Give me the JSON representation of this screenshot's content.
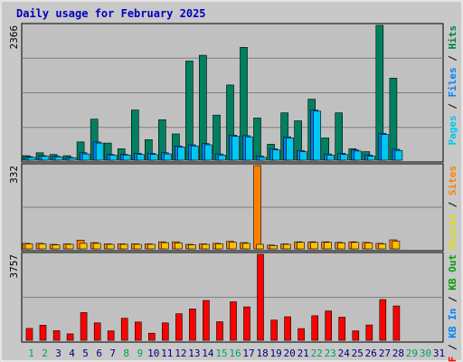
{
  "chart_data": [
    {
      "type": "bar",
      "title": "Daily usage for February 2025",
      "ylabel_top": "2366",
      "right_label": {
        "parts": [
          {
            "text": "Pages",
            "color": "#00c8f0"
          },
          {
            "text": " / ",
            "color": "#000000"
          },
          {
            "text": "Files",
            "color": "#0080ff"
          },
          {
            "text": " / ",
            "color": "#000000"
          },
          {
            "text": "Hits",
            "color": "#008040"
          }
        ]
      },
      "ylim": [
        0,
        2366
      ],
      "categories": [
        "1",
        "2",
        "3",
        "4",
        "5",
        "6",
        "7",
        "8",
        "9",
        "10",
        "11",
        "12",
        "13",
        "14",
        "15",
        "16",
        "17",
        "18",
        "19",
        "20",
        "21",
        "22",
        "23",
        "24",
        "25",
        "26",
        "27",
        "28",
        "29",
        "30",
        "31"
      ],
      "series": [
        {
          "name": "Hits",
          "color": "#008060",
          "values": [
            80,
            130,
            100,
            80,
            320,
            720,
            300,
            200,
            880,
            360,
            710,
            460,
            1740,
            1840,
            790,
            1320,
            1980,
            740,
            280,
            830,
            690,
            1070,
            390,
            830,
            200,
            150,
            2366,
            1440,
            0,
            0,
            0
          ]
        },
        {
          "name": "Files",
          "color": "#0080ff",
          "values": [
            60,
            80,
            70,
            50,
            130,
            320,
            100,
            100,
            120,
            120,
            130,
            250,
            270,
            290,
            110,
            440,
            430,
            70,
            200,
            410,
            170,
            880,
            110,
            120,
            180,
            90,
            470,
            190,
            0,
            0,
            0
          ]
        },
        {
          "name": "Pages",
          "color": "#00c8f0",
          "values": [
            50,
            70,
            60,
            40,
            110,
            300,
            90,
            90,
            100,
            100,
            110,
            230,
            250,
            270,
            90,
            420,
            410,
            50,
            180,
            390,
            150,
            860,
            90,
            100,
            160,
            70,
            450,
            170,
            0,
            0,
            0
          ]
        }
      ]
    },
    {
      "type": "bar",
      "ylabel_top": "332",
      "right_label": {
        "parts": [
          {
            "text": "Visits",
            "color": "#e0e000"
          },
          {
            "text": " / ",
            "color": "#000000"
          },
          {
            "text": "Sites",
            "color": "#ff8000"
          }
        ]
      },
      "ylim": [
        0,
        332
      ],
      "categories": [
        "1",
        "2",
        "3",
        "4",
        "5",
        "6",
        "7",
        "8",
        "9",
        "10",
        "11",
        "12",
        "13",
        "14",
        "15",
        "16",
        "17",
        "18",
        "19",
        "20",
        "21",
        "22",
        "23",
        "24",
        "25",
        "26",
        "27",
        "28",
        "29",
        "30",
        "31"
      ],
      "series": [
        {
          "name": "Sites",
          "color": "#ff8000",
          "values": [
            22,
            22,
            18,
            20,
            35,
            25,
            20,
            20,
            20,
            20,
            28,
            28,
            18,
            20,
            22,
            30,
            25,
            332,
            15,
            20,
            28,
            28,
            28,
            26,
            28,
            26,
            22,
            36,
            0,
            0,
            0
          ]
        },
        {
          "name": "Visits",
          "color": "#ffc000",
          "values": [
            20,
            20,
            16,
            18,
            22,
            22,
            18,
            18,
            18,
            18,
            25,
            24,
            16,
            18,
            20,
            26,
            22,
            18,
            13,
            18,
            26,
            26,
            26,
            24,
            26,
            24,
            20,
            30,
            0,
            0,
            0
          ]
        }
      ]
    },
    {
      "type": "bar",
      "ylabel_top": "3757",
      "right_label": {
        "parts": [
          {
            "text": "KB F",
            "color": "#ff0000"
          },
          {
            "text": " / ",
            "color": "#000000"
          },
          {
            "text": "KB In",
            "color": "#0080ff"
          },
          {
            "text": " / ",
            "color": "#000000"
          },
          {
            "text": "KB Out",
            "color": "#00a000"
          }
        ]
      },
      "ylim": [
        0,
        3757
      ],
      "categories": [
        "1",
        "2",
        "3",
        "4",
        "5",
        "6",
        "7",
        "8",
        "9",
        "10",
        "11",
        "12",
        "13",
        "14",
        "15",
        "16",
        "17",
        "18",
        "19",
        "20",
        "21",
        "22",
        "23",
        "24",
        "25",
        "26",
        "27",
        "28",
        "29",
        "30",
        "31"
      ],
      "series": [
        {
          "name": "KB F",
          "color": "#ff0000",
          "values": [
            520,
            660,
            420,
            280,
            1210,
            760,
            410,
            960,
            800,
            310,
            760,
            1160,
            1370,
            1740,
            810,
            1680,
            1460,
            3757,
            880,
            1030,
            510,
            1070,
            1280,
            1010,
            410,
            670,
            1780,
            1500,
            0,
            0,
            0
          ]
        }
      ]
    }
  ],
  "x_axis": {
    "labels": [
      "1",
      "2",
      "3",
      "4",
      "5",
      "6",
      "7",
      "8",
      "9",
      "10",
      "11",
      "12",
      "13",
      "14",
      "15",
      "16",
      "17",
      "18",
      "19",
      "20",
      "21",
      "22",
      "23",
      "24",
      "25",
      "26",
      "27",
      "28",
      "29",
      "30",
      "31"
    ],
    "weekend_color": "#00a060",
    "weekday_color": "#000080",
    "weekend_days": [
      1,
      2,
      8,
      9,
      15,
      16,
      22,
      23,
      29,
      30
    ]
  }
}
